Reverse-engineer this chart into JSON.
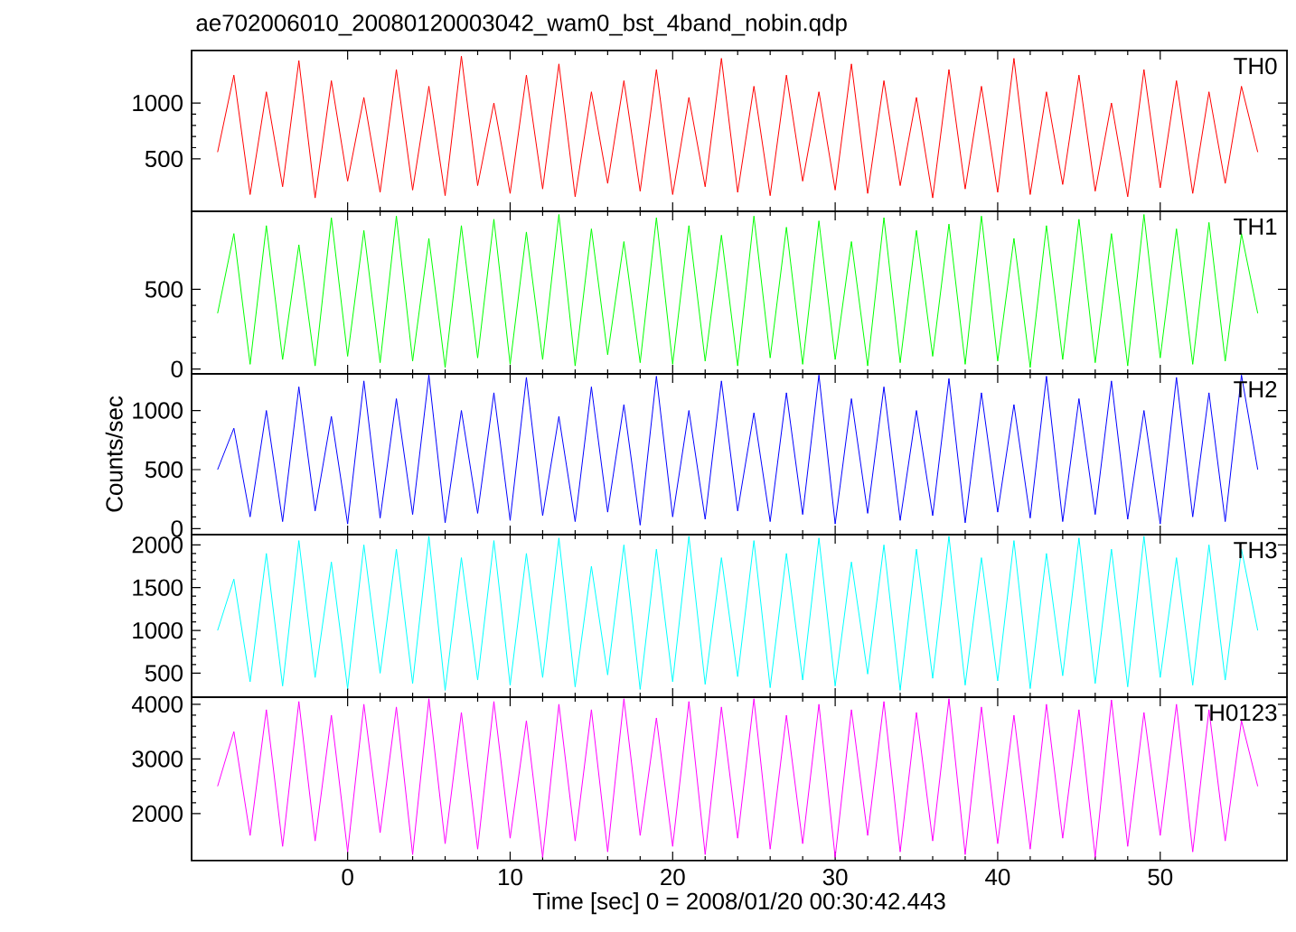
{
  "chart_data": [
    {
      "type": "line",
      "title": "ae702006010_20080120003042_wam0_bst_4band_nobin.qdp",
      "x": [
        -8,
        -7,
        -6,
        -5,
        -4,
        -3,
        -2,
        -1,
        0,
        1,
        2,
        3,
        4,
        5,
        6,
        7,
        8,
        9,
        10,
        11,
        12,
        13,
        14,
        15,
        16,
        17,
        18,
        19,
        20,
        21,
        22,
        23,
        24,
        25,
        26,
        27,
        28,
        29,
        30,
        31,
        32,
        33,
        34,
        35,
        36,
        37,
        38,
        39,
        40,
        41,
        42,
        43,
        44,
        45,
        46,
        47,
        48,
        49,
        50,
        51,
        52,
        53,
        54,
        55,
        56
      ],
      "xlim": [
        -9.6,
        57.8
      ],
      "xticks": [
        0,
        10,
        20,
        30,
        40,
        50
      ],
      "ylim": [
        30,
        1470
      ],
      "yticks": [
        500,
        1000
      ],
      "tick_labels": "y",
      "series": [
        {
          "name": "TH0",
          "color": "#ff0000",
          "values": [
            560,
            1250,
            180,
            1100,
            250,
            1380,
            150,
            1200,
            300,
            1050,
            200,
            1300,
            220,
            1150,
            170,
            1420,
            260,
            1000,
            190,
            1250,
            230,
            1350,
            160,
            1100,
            280,
            1200,
            210,
            1300,
            180,
            1050,
            250,
            1400,
            200,
            1150,
            170,
            1250,
            300,
            1100,
            220,
            1350,
            190,
            1200,
            260,
            1050,
            150,
            1300,
            230,
            1150,
            200,
            1400,
            180,
            1100,
            270,
            1250,
            210,
            1000,
            160,
            1300,
            240,
            1200,
            190,
            1100,
            280,
            1150,
            560
          ]
        }
      ]
    },
    {
      "type": "line",
      "x": [
        -8,
        -7,
        -6,
        -5,
        -4,
        -3,
        -2,
        -1,
        0,
        1,
        2,
        3,
        4,
        5,
        6,
        7,
        8,
        9,
        10,
        11,
        12,
        13,
        14,
        15,
        16,
        17,
        18,
        19,
        20,
        21,
        22,
        23,
        24,
        25,
        26,
        27,
        28,
        29,
        30,
        31,
        32,
        33,
        34,
        35,
        36,
        37,
        38,
        39,
        40,
        41,
        42,
        43,
        44,
        45,
        46,
        47,
        48,
        49,
        50,
        51,
        52,
        53,
        54,
        55,
        56
      ],
      "xlim": [
        -9.6,
        57.8
      ],
      "xticks": [
        0,
        10,
        20,
        30,
        40,
        50
      ],
      "ylim": [
        -30,
        990
      ],
      "yticks": [
        0,
        500
      ],
      "tick_labels": "y",
      "series": [
        {
          "name": "TH1",
          "color": "#00ff00",
          "values": [
            350,
            850,
            30,
            900,
            60,
            780,
            20,
            950,
            80,
            870,
            40,
            960,
            50,
            820,
            10,
            900,
            70,
            940,
            30,
            860,
            60,
            970,
            20,
            880,
            90,
            800,
            40,
            950,
            30,
            900,
            50,
            840,
            20,
            960,
            70,
            890,
            30,
            930,
            60,
            800,
            20,
            950,
            40,
            870,
            80,
            910,
            30,
            960,
            50,
            820,
            10,
            900,
            60,
            940,
            40,
            850,
            20,
            970,
            70,
            880,
            30,
            920,
            50,
            850,
            350
          ]
        }
      ]
    },
    {
      "type": "line",
      "ylabel": "Counts/sec",
      "x": [
        -8,
        -7,
        -6,
        -5,
        -4,
        -3,
        -2,
        -1,
        0,
        1,
        2,
        3,
        4,
        5,
        6,
        7,
        8,
        9,
        10,
        11,
        12,
        13,
        14,
        15,
        16,
        17,
        18,
        19,
        20,
        21,
        22,
        23,
        24,
        25,
        26,
        27,
        28,
        29,
        30,
        31,
        32,
        33,
        34,
        35,
        36,
        37,
        38,
        39,
        40,
        41,
        42,
        43,
        44,
        45,
        46,
        47,
        48,
        49,
        50,
        51,
        52,
        53,
        54,
        55,
        56
      ],
      "xlim": [
        -9.6,
        57.8
      ],
      "xticks": [
        0,
        10,
        20,
        30,
        40,
        50
      ],
      "ylim": [
        -50,
        1310
      ],
      "yticks": [
        0,
        500,
        1000
      ],
      "tick_labels": "y",
      "series": [
        {
          "name": "TH2",
          "color": "#0000ff",
          "values": [
            500,
            850,
            100,
            1000,
            60,
            1200,
            150,
            950,
            40,
            1250,
            90,
            1100,
            120,
            1300,
            50,
            1000,
            130,
            1150,
            70,
            1280,
            110,
            950,
            60,
            1200,
            140,
            1050,
            30,
            1290,
            100,
            1000,
            80,
            1250,
            150,
            980,
            60,
            1150,
            120,
            1300,
            40,
            1100,
            130,
            1200,
            70,
            1000,
            110,
            1270,
            50,
            1150,
            140,
            1050,
            90,
            1290,
            60,
            1100,
            120,
            1250,
            80,
            1000,
            40,
            1280,
            100,
            1150,
            60,
            1300,
            500
          ]
        }
      ]
    },
    {
      "type": "line",
      "x": [
        -8,
        -7,
        -6,
        -5,
        -4,
        -3,
        -2,
        -1,
        0,
        1,
        2,
        3,
        4,
        5,
        6,
        7,
        8,
        9,
        10,
        11,
        12,
        13,
        14,
        15,
        16,
        17,
        18,
        19,
        20,
        21,
        22,
        23,
        24,
        25,
        26,
        27,
        28,
        29,
        30,
        31,
        32,
        33,
        34,
        35,
        36,
        37,
        38,
        39,
        40,
        41,
        42,
        43,
        44,
        45,
        46,
        47,
        48,
        49,
        50,
        51,
        52,
        53,
        54,
        55,
        56
      ],
      "xlim": [
        -9.6,
        57.8
      ],
      "xticks": [
        0,
        10,
        20,
        30,
        40,
        50
      ],
      "ylim": [
        220,
        2120
      ],
      "yticks": [
        500,
        1000,
        1500,
        2000
      ],
      "tick_labels": "y",
      "series": [
        {
          "name": "TH3",
          "color": "#00ffff",
          "values": [
            1000,
            1600,
            400,
            1900,
            350,
            2050,
            450,
            1800,
            320,
            2000,
            500,
            1950,
            380,
            2100,
            300,
            1850,
            420,
            2050,
            360,
            1900,
            450,
            2080,
            340,
            1750,
            480,
            2000,
            310,
            1950,
            400,
            2100,
            370,
            1850,
            460,
            2050,
            330,
            1900,
            420,
            2080,
            350,
            1800,
            490,
            2000,
            300,
            1950,
            440,
            2100,
            360,
            1850,
            410,
            2050,
            320,
            1900,
            470,
            2080,
            380,
            1950,
            340,
            2100,
            450,
            1850,
            360,
            2000,
            420,
            1950,
            1000
          ]
        }
      ]
    },
    {
      "type": "line",
      "xlabel": "Time [sec] 0 = 2008/01/20 00:30:42.443",
      "x": [
        -8,
        -7,
        -6,
        -5,
        -4,
        -3,
        -2,
        -1,
        0,
        1,
        2,
        3,
        4,
        5,
        6,
        7,
        8,
        9,
        10,
        11,
        12,
        13,
        14,
        15,
        16,
        17,
        18,
        19,
        20,
        21,
        22,
        23,
        24,
        25,
        26,
        27,
        28,
        29,
        30,
        31,
        32,
        33,
        34,
        35,
        36,
        37,
        38,
        39,
        40,
        41,
        42,
        43,
        44,
        45,
        46,
        47,
        48,
        49,
        50,
        51,
        52,
        53,
        54,
        55,
        56
      ],
      "xlim": [
        -9.6,
        57.8
      ],
      "xticks": [
        0,
        10,
        20,
        30,
        40,
        50
      ],
      "ylim": [
        1140,
        4130
      ],
      "yticks": [
        2000,
        3000,
        4000
      ],
      "series": [
        {
          "name": "TH0123",
          "color": "#ff00ff",
          "values": [
            2500,
            3500,
            1600,
            3900,
            1400,
            4050,
            1500,
            3800,
            1300,
            4000,
            1650,
            3950,
            1250,
            4100,
            1450,
            3850,
            1350,
            4050,
            1550,
            3700,
            1200,
            4000,
            1500,
            3900,
            1300,
            4100,
            1600,
            3750,
            1400,
            4050,
            1250,
            3950,
            1550,
            4100,
            1350,
            3800,
            1450,
            4000,
            1200,
            3900,
            1600,
            4050,
            1300,
            3850,
            1500,
            4100,
            1250,
            3950,
            1450,
            3800,
            1350,
            4000,
            1550,
            3900,
            1200,
            4080,
            1400,
            3850,
            1600,
            4000,
            1300,
            3900,
            1500,
            3700,
            2500
          ]
        }
      ]
    }
  ]
}
